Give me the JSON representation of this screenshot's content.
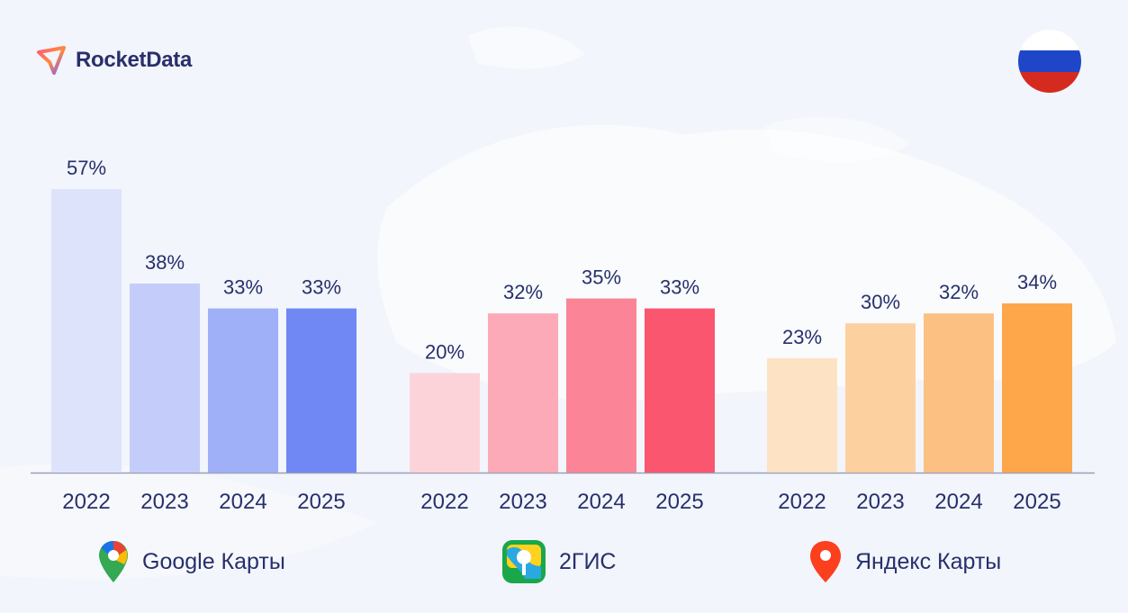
{
  "brand": {
    "name": "RocketData"
  },
  "flag": {
    "colors": [
      "#ffffff",
      "#1f46c9",
      "#d52b1e"
    ]
  },
  "chart_data": {
    "type": "bar",
    "groups": [
      {
        "name": "Google Карты",
        "icon": "google-maps-pin-icon",
        "categories": [
          "2022",
          "2023",
          "2024",
          "2025"
        ],
        "values": [
          57,
          38,
          33,
          33
        ],
        "labels": [
          "57%",
          "38%",
          "33%",
          "33%"
        ],
        "colors": [
          "#dde3fb",
          "#c4cdfa",
          "#9fb0f8",
          "#6f88f3"
        ]
      },
      {
        "name": "2ГИС",
        "icon": "2gis-app-icon",
        "categories": [
          "2022",
          "2023",
          "2024",
          "2025"
        ],
        "values": [
          20,
          32,
          35,
          33
        ],
        "labels": [
          "20%",
          "32%",
          "35%",
          "33%"
        ],
        "colors": [
          "#fdd3da",
          "#fcaab7",
          "#fb8596",
          "#fa5670"
        ]
      },
      {
        "name": "Яндекс Карты",
        "icon": "yandex-maps-pin-icon",
        "categories": [
          "2022",
          "2023",
          "2024",
          "2025"
        ],
        "values": [
          23,
          30,
          32,
          34
        ],
        "labels": [
          "23%",
          "30%",
          "32%",
          "34%"
        ],
        "colors": [
          "#fde2c4",
          "#fdd0a0",
          "#fdc083",
          "#fda64a"
        ]
      }
    ],
    "unit": "%",
    "ylim": [
      0,
      57
    ],
    "grid": false,
    "legend": "bottom"
  }
}
